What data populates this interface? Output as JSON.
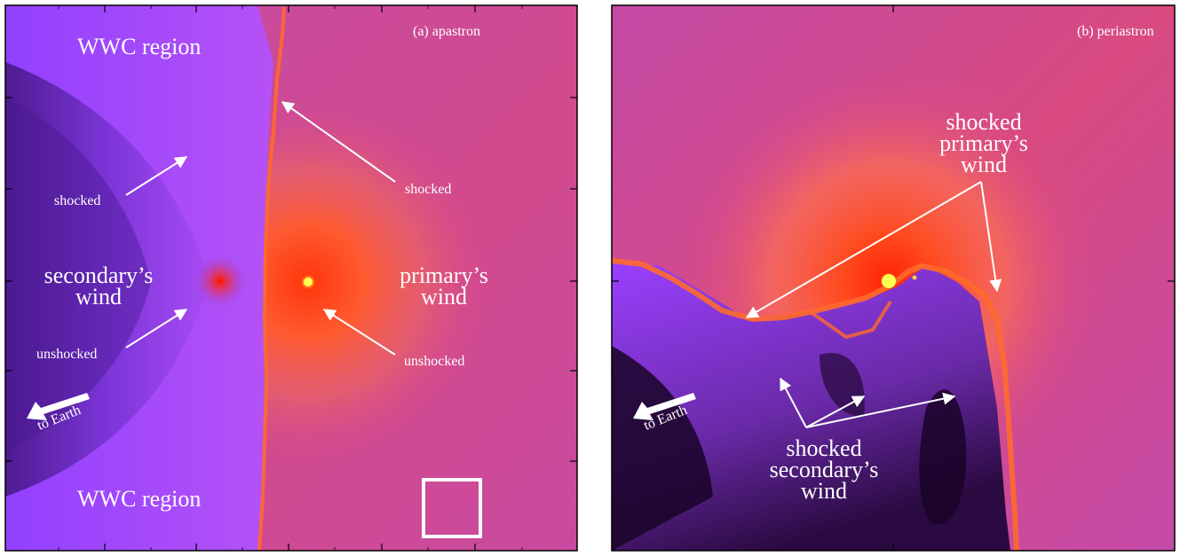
{
  "colors": {
    "primary_wind": "#d8448e",
    "secondary_wind": "#9a40ff",
    "shock_front": "#ff6a2c",
    "star_core": "#ffff30",
    "annotation": "#ffffff"
  },
  "panel_a": {
    "title": "(a) apastron",
    "wwc_top": "WWC region",
    "wwc_bottom": "WWC region",
    "secondary_wind_line1": "secondary’s",
    "secondary_wind_line2": "wind",
    "primary_wind_line1": "primary’s",
    "primary_wind_line2": "wind",
    "shocked_left": "shocked",
    "unshocked_left": "unshocked",
    "shocked_right": "shocked",
    "unshocked_right": "unshocked",
    "earth_label": "to Earth"
  },
  "panel_b": {
    "title": "(b) periastron",
    "shocked_primary_line1": "shocked",
    "shocked_primary_line2": "primary’s",
    "shocked_primary_line3": "wind",
    "shocked_secondary_line1": "shocked",
    "shocked_secondary_line2": "secondary’s",
    "shocked_secondary_line3": "wind",
    "earth_label": "to Earth"
  }
}
